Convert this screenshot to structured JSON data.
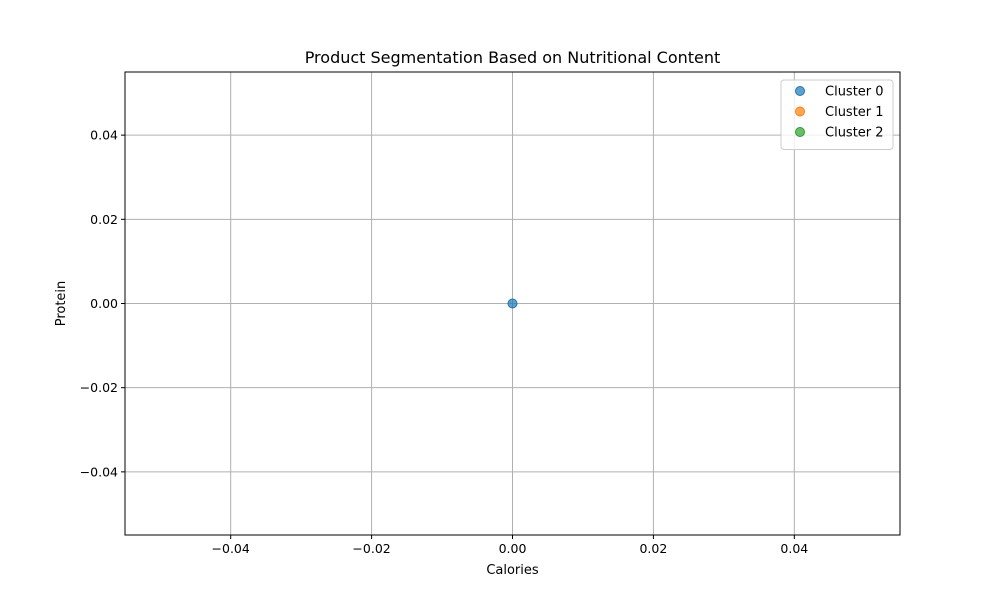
{
  "chart_data": {
    "type": "scatter",
    "title": "Product Segmentation Based on Nutritional Content",
    "xlabel": "Calories",
    "ylabel": "Protein",
    "xlim": [
      -0.055,
      0.055
    ],
    "ylim": [
      -0.055,
      0.055
    ],
    "xticks": [
      -0.04,
      -0.02,
      0.0,
      0.02,
      0.04
    ],
    "yticks": [
      -0.04,
      -0.02,
      0.0,
      0.02,
      0.04
    ],
    "xtick_labels": [
      "−0.04",
      "−0.02",
      "0.00",
      "0.02",
      "0.04"
    ],
    "ytick_labels": [
      "−0.04",
      "−0.02",
      "0.00",
      "0.02",
      "0.04"
    ],
    "grid": true,
    "legend_position": "top-right",
    "series": [
      {
        "name": "Cluster 0",
        "color": "#1f77b4",
        "points": [
          {
            "x": 0.0,
            "y": 0.0
          }
        ]
      },
      {
        "name": "Cluster 1",
        "color": "#ff7f0e",
        "points": []
      },
      {
        "name": "Cluster 2",
        "color": "#2ca02c",
        "points": []
      }
    ]
  }
}
